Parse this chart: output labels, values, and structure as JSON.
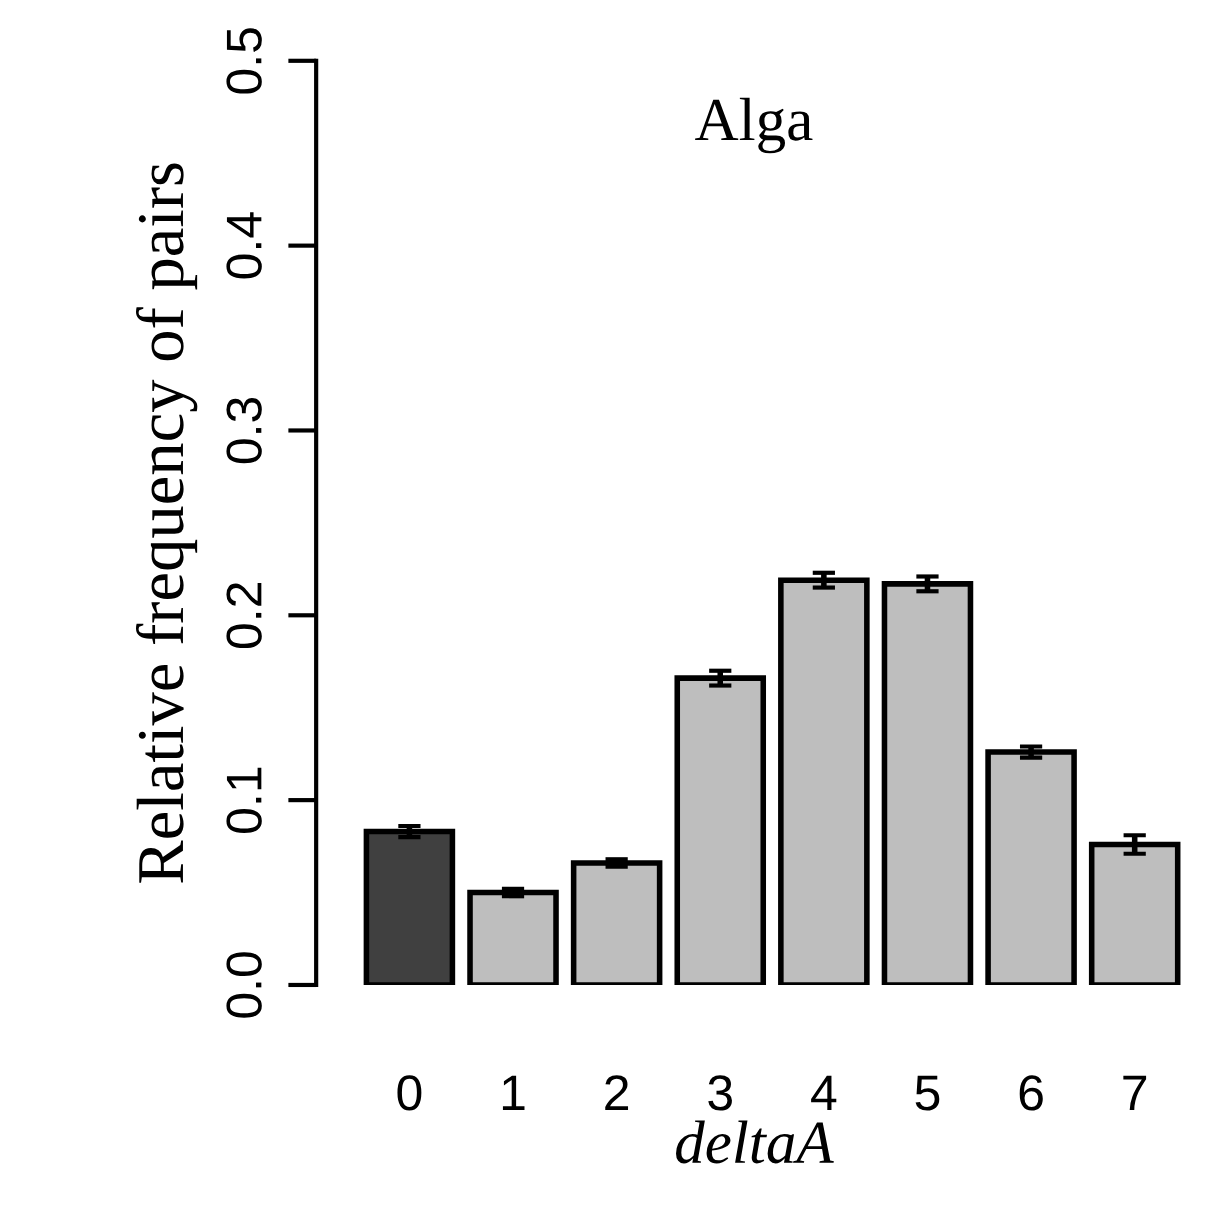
{
  "chart_data": {
    "type": "bar",
    "title": "Alga",
    "xlabel": "deltaA",
    "ylabel": "Relative frequency of pairs",
    "categories": [
      "0",
      "1",
      "2",
      "3",
      "4",
      "5",
      "6",
      "7"
    ],
    "values": [
      0.083,
      0.05,
      0.066,
      0.166,
      0.219,
      0.217,
      0.126,
      0.076
    ],
    "errors": [
      0.003,
      0.002,
      0.002,
      0.004,
      0.004,
      0.004,
      0.003,
      0.005
    ],
    "colors": [
      "#404040",
      "#bebebe",
      "#bebebe",
      "#bebebe",
      "#bebebe",
      "#bebebe",
      "#bebebe",
      "#bebebe"
    ],
    "ylim": [
      0,
      0.5
    ],
    "yticks": [
      {
        "value": 0,
        "label": "0.0"
      },
      0.1,
      0.2,
      0.3,
      0.4,
      0.5
    ],
    "grid": false,
    "legend": false
  }
}
